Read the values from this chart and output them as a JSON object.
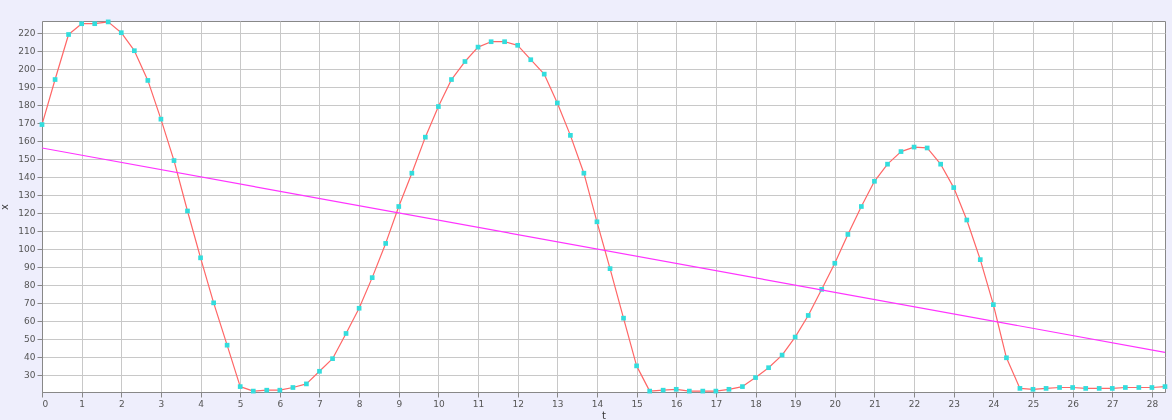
{
  "chart_data": {
    "type": "line",
    "xlabel": "t",
    "ylabel": "x",
    "x": [
      0,
      0.33,
      0.67,
      1,
      1.33,
      1.67,
      2,
      2.33,
      2.67,
      3,
      3.33,
      3.67,
      4,
      4.33,
      4.67,
      5,
      5.33,
      5.67,
      6,
      6.33,
      6.67,
      7,
      7.33,
      7.67,
      8,
      8.33,
      8.67,
      9,
      9.33,
      9.67,
      10,
      10.33,
      10.67,
      11,
      11.33,
      11.67,
      12,
      12.33,
      12.67,
      13,
      13.33,
      13.67,
      14,
      14.33,
      14.67,
      15,
      15.33,
      15.67,
      16,
      16.33,
      16.67,
      17,
      17.33,
      17.67,
      18,
      18.33,
      18.67,
      19,
      19.33,
      19.67,
      20,
      20.33,
      20.67,
      21,
      21.33,
      21.67,
      22,
      22.33,
      22.67,
      23,
      23.33,
      23.67,
      24,
      24.33,
      24.67,
      25,
      25.33,
      25.67,
      26,
      26.33,
      26.67,
      27,
      27.33,
      27.67,
      28,
      28.33
    ],
    "series": [
      {
        "color": "#ff6666",
        "marker": "none",
        "values": [
          169,
          194,
          219,
          225,
          225,
          226,
          220,
          210,
          193.5,
          172,
          149,
          121,
          95,
          70,
          46.5,
          23.5,
          21,
          21.5,
          21.5,
          23,
          25,
          32,
          39,
          53,
          67,
          84,
          103,
          123.5,
          142,
          162,
          179,
          194,
          204,
          212,
          215,
          215,
          213,
          205,
          197,
          181,
          163,
          142,
          115,
          89,
          61.5,
          35,
          21,
          21.5,
          22,
          21,
          21,
          21,
          22,
          23.5,
          28.5,
          34,
          41,
          51,
          63,
          77.5,
          92,
          108,
          123.5,
          137.5,
          147,
          154,
          156.5,
          156,
          147,
          134,
          116,
          94,
          69,
          39.5,
          22.5,
          22,
          22.5,
          23,
          23,
          22.5,
          22.5,
          22.5,
          23,
          23,
          23,
          23.5
        ]
      },
      {
        "type": "scatter",
        "color": "#33dddd",
        "marker": "square",
        "values": [
          169,
          194,
          219,
          225,
          225,
          226,
          220,
          210,
          193.5,
          172,
          149,
          121,
          95,
          70,
          46.5,
          23.5,
          21,
          21.5,
          21.5,
          23,
          25,
          32,
          39,
          53,
          67,
          84,
          103,
          123.5,
          142,
          162,
          179,
          194,
          204,
          212,
          215,
          215,
          213,
          205,
          197,
          181,
          163,
          142,
          115,
          89,
          61.5,
          35,
          21,
          21.5,
          22,
          21,
          21,
          21,
          22,
          23.5,
          28.5,
          34,
          41,
          51,
          63,
          77.5,
          92,
          108,
          123.5,
          137.5,
          147,
          154,
          156.5,
          156,
          147,
          134,
          116,
          94,
          69,
          39.5,
          22.5,
          22,
          22.5,
          23,
          23,
          22.5,
          22.5,
          22.5,
          23,
          23,
          23,
          23.5
        ]
      },
      {
        "color": "#ff33ff",
        "marker": "none",
        "x": [
          0,
          28.33
        ],
        "values": [
          156,
          42.5
        ]
      }
    ],
    "xlim": [
      0,
      28.33
    ],
    "ylim": [
      20.5,
      226.5
    ],
    "xticks": [
      0,
      1,
      2,
      3,
      4,
      5,
      6,
      7,
      8,
      9,
      10,
      11,
      12,
      13,
      14,
      15,
      16,
      17,
      18,
      19,
      20,
      21,
      22,
      23,
      24,
      25,
      26,
      27,
      28
    ],
    "yticks": [
      30,
      40,
      50,
      60,
      70,
      80,
      90,
      100,
      110,
      120,
      130,
      140,
      150,
      160,
      170,
      180,
      190,
      200,
      210,
      220
    ],
    "grid": true,
    "line_style": "solid"
  }
}
